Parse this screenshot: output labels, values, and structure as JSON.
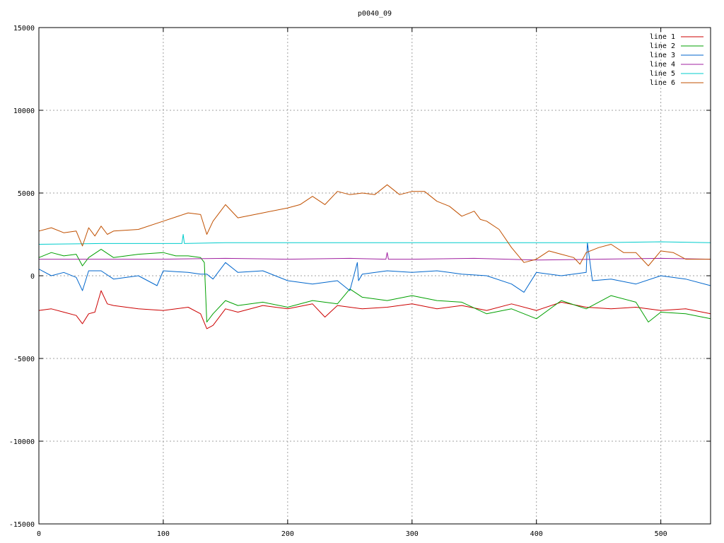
{
  "chart_data": {
    "type": "line",
    "title": "p0040_09",
    "xlim": [
      0,
      540
    ],
    "ylim": [
      -15000,
      15000
    ],
    "xticks": [
      0,
      100,
      200,
      300,
      400,
      500
    ],
    "yticks": [
      -15000,
      -10000,
      -5000,
      0,
      5000,
      10000,
      15000
    ],
    "grid": true,
    "legend_position": "top-right",
    "series": [
      {
        "name": "line 1",
        "color": "#cc0000",
        "x": [
          0,
          10,
          20,
          30,
          35,
          40,
          45,
          50,
          55,
          60,
          80,
          100,
          120,
          130,
          135,
          140,
          150,
          160,
          180,
          200,
          220,
          230,
          240,
          260,
          280,
          300,
          320,
          340,
          360,
          380,
          400,
          420,
          440,
          460,
          480,
          500,
          520,
          540
        ],
        "y": [
          -2100,
          -2000,
          -2200,
          -2400,
          -2900,
          -2300,
          -2200,
          -900,
          -1700,
          -1800,
          -2000,
          -2100,
          -1900,
          -2300,
          -3200,
          -3000,
          -2000,
          -2200,
          -1800,
          -2000,
          -1700,
          -2500,
          -1800,
          -2000,
          -1900,
          -1700,
          -2000,
          -1800,
          -2100,
          -1700,
          -2100,
          -1600,
          -1900,
          -2000,
          -1900,
          -2100,
          -2000,
          -2300
        ]
      },
      {
        "name": "line 2",
        "color": "#00a000",
        "x": [
          0,
          10,
          20,
          30,
          35,
          40,
          50,
          60,
          80,
          100,
          110,
          120,
          130,
          133,
          135,
          140,
          150,
          160,
          180,
          200,
          220,
          240,
          250,
          260,
          280,
          300,
          320,
          340,
          360,
          380,
          400,
          420,
          440,
          460,
          480,
          490,
          500,
          520,
          540
        ],
        "y": [
          1100,
          1400,
          1200,
          1300,
          600,
          1100,
          1600,
          1100,
          1300,
          1400,
          1200,
          1200,
          1100,
          800,
          -2800,
          -2300,
          -1500,
          -1800,
          -1600,
          -1900,
          -1500,
          -1700,
          -800,
          -1300,
          -1500,
          -1200,
          -1500,
          -1600,
          -2300,
          -2000,
          -2600,
          -1500,
          -2000,
          -1200,
          -1600,
          -2800,
          -2200,
          -2300,
          -2600
        ]
      },
      {
        "name": "line 3",
        "color": "#0066cc",
        "x": [
          0,
          10,
          20,
          30,
          35,
          40,
          50,
          60,
          80,
          95,
          100,
          120,
          130,
          135,
          140,
          150,
          160,
          180,
          200,
          220,
          240,
          250,
          256,
          257,
          260,
          280,
          300,
          320,
          340,
          360,
          380,
          390,
          400,
          420,
          440,
          441,
          445,
          460,
          480,
          500,
          520,
          540
        ],
        "y": [
          400,
          0,
          200,
          -100,
          -900,
          300,
          300,
          -200,
          0,
          -600,
          300,
          200,
          100,
          100,
          -200,
          800,
          200,
          300,
          -300,
          -500,
          -300,
          -900,
          800,
          -300,
          100,
          300,
          200,
          300,
          100,
          0,
          -500,
          -1000,
          200,
          0,
          200,
          2000,
          -300,
          -200,
          -500,
          0,
          -200,
          -600
        ]
      },
      {
        "name": "line 4",
        "color": "#a020a0",
        "x": [
          0,
          50,
          100,
          150,
          200,
          250,
          279,
          280,
          281,
          300,
          350,
          400,
          450,
          500,
          540
        ],
        "y": [
          1000,
          1000,
          1000,
          1050,
          1000,
          1050,
          1000,
          1400,
          1000,
          1000,
          1050,
          950,
          1000,
          1050,
          1000
        ]
      },
      {
        "name": "line 5",
        "color": "#00cccc",
        "x": [
          0,
          50,
          100,
          115,
          116,
          117,
          150,
          200,
          250,
          300,
          350,
          400,
          450,
          500,
          540
        ],
        "y": [
          1900,
          1950,
          1950,
          1950,
          2500,
          1950,
          2000,
          2000,
          2000,
          2000,
          2000,
          2000,
          2000,
          2050,
          2000
        ]
      },
      {
        "name": "line 6",
        "color": "#c05000",
        "x": [
          0,
          10,
          20,
          30,
          35,
          40,
          45,
          50,
          55,
          60,
          80,
          100,
          120,
          130,
          135,
          140,
          150,
          160,
          180,
          200,
          210,
          220,
          230,
          240,
          250,
          260,
          270,
          280,
          290,
          300,
          310,
          320,
          330,
          340,
          350,
          355,
          360,
          370,
          380,
          390,
          400,
          410,
          420,
          430,
          435,
          440,
          450,
          460,
          470,
          480,
          490,
          500,
          510,
          520,
          530,
          540
        ],
        "y": [
          2700,
          2900,
          2600,
          2700,
          1800,
          2900,
          2400,
          3000,
          2500,
          2700,
          2800,
          3300,
          3800,
          3700,
          2500,
          3300,
          4300,
          3500,
          3800,
          4100,
          4300,
          4800,
          4300,
          5100,
          4900,
          5000,
          4900,
          5500,
          4900,
          5100,
          5100,
          4500,
          4200,
          3600,
          3900,
          3400,
          3300,
          2800,
          1700,
          800,
          1000,
          1500,
          1300,
          1100,
          700,
          1400,
          1700,
          1900,
          1400,
          1400,
          600,
          1500,
          1400,
          1000,
          1000,
          1000
        ]
      }
    ]
  }
}
